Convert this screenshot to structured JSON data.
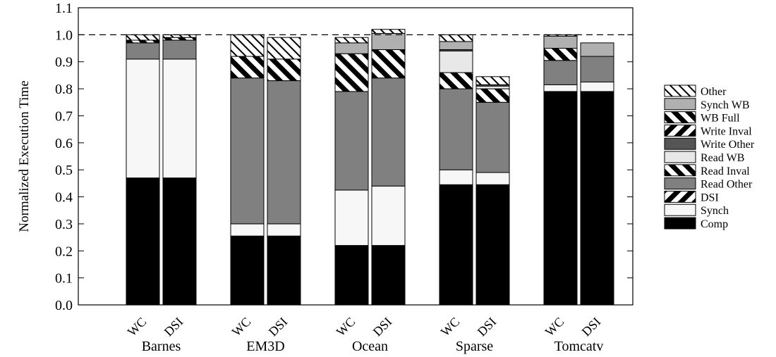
{
  "chart_data": {
    "type": "bar",
    "stacked": true,
    "title": "",
    "xlabel": "",
    "ylabel": "Normalized Execution Time",
    "ylim": [
      0.0,
      1.1
    ],
    "yticks": [
      "0.0",
      "0.1",
      "0.2",
      "0.3",
      "0.4",
      "0.5",
      "0.6",
      "0.7",
      "0.8",
      "0.9",
      "1.0",
      "1.1"
    ],
    "reference_line": {
      "y": 1.0,
      "style": "dashed"
    },
    "grid": false,
    "legend_position": "right",
    "groups": [
      {
        "name": "Barnes",
        "bars": [
          {
            "label": "WC",
            "values": [
              0.47,
              0.44,
              0.0,
              0.06,
              0.0,
              0.0,
              0.0,
              0.0,
              0.01,
              0.0,
              0.02
            ]
          },
          {
            "label": "DSI",
            "values": [
              0.47,
              0.44,
              0.0,
              0.07,
              0.0,
              0.0,
              0.0,
              0.0,
              0.01,
              0.0,
              0.01
            ]
          }
        ]
      },
      {
        "name": "EM3D",
        "bars": [
          {
            "label": "WC",
            "values": [
              0.255,
              0.045,
              0.0,
              0.54,
              0.0,
              0.0,
              0.0,
              0.0,
              0.08,
              0.0,
              0.08
            ]
          },
          {
            "label": "DSI",
            "values": [
              0.255,
              0.045,
              0.0,
              0.53,
              0.0,
              0.0,
              0.0,
              0.0,
              0.08,
              0.0,
              0.08
            ]
          }
        ]
      },
      {
        "name": "Ocean",
        "bars": [
          {
            "label": "WC",
            "values": [
              0.22,
              0.205,
              0.0,
              0.365,
              0.0,
              0.0,
              0.0,
              0.0,
              0.14,
              0.04,
              0.02
            ]
          },
          {
            "label": "DSI",
            "values": [
              0.22,
              0.22,
              0.0,
              0.4,
              0.0,
              0.0,
              0.0,
              0.0,
              0.105,
              0.06,
              0.015
            ]
          }
        ]
      },
      {
        "name": "Sparse",
        "bars": [
          {
            "label": "WC",
            "values": [
              0.445,
              0.055,
              0.0,
              0.3,
              0.06,
              0.08,
              0.005,
              0.0,
              0.0,
              0.03,
              0.025
            ]
          },
          {
            "label": "DSI",
            "values": [
              0.445,
              0.045,
              0.0,
              0.26,
              0.05,
              0.01,
              0.005,
              0.0,
              0.0,
              0.0,
              0.03
            ]
          }
        ]
      },
      {
        "name": "Tomcatv",
        "bars": [
          {
            "label": "WC",
            "values": [
              0.79,
              0.025,
              0.0,
              0.09,
              0.045,
              0.0,
              0.0,
              0.0,
              0.0,
              0.045,
              0.005
            ]
          },
          {
            "label": "DSI",
            "values": [
              0.79,
              0.035,
              0.0,
              0.095,
              0.0,
              0.0,
              0.0,
              0.0,
              0.0,
              0.05,
              0.0
            ]
          }
        ]
      }
    ],
    "series": [
      {
        "name": "Comp",
        "fill": "#000000",
        "pattern": "solid"
      },
      {
        "name": "Synch",
        "fill": "#f7f7f7",
        "pattern": "solid"
      },
      {
        "name": "DSI",
        "fill": "#ffffff",
        "pattern": "back-diagonal-stripes"
      },
      {
        "name": "Read Other",
        "fill": "#808080",
        "pattern": "solid"
      },
      {
        "name": "Read Inval",
        "fill": "#ffffff",
        "pattern": "diagonal-stripes"
      },
      {
        "name": "Read WB",
        "fill": "#e8e8e8",
        "pattern": "solid"
      },
      {
        "name": "Write Other",
        "fill": "#555555",
        "pattern": "solid"
      },
      {
        "name": "Write Inval",
        "fill": "#ffffff",
        "pattern": "back-diagonal-stripes"
      },
      {
        "name": "WB Full",
        "fill": "#ffffff",
        "pattern": "diagonal-stripes"
      },
      {
        "name": "Synch WB",
        "fill": "#b0b0b0",
        "pattern": "solid"
      },
      {
        "name": "Other",
        "fill": "#ffffff",
        "pattern": "thin-diagonal-stripes"
      }
    ],
    "legend_order": [
      "Other",
      "Synch WB",
      "WB Full",
      "Write Inval",
      "Write Other",
      "Read WB",
      "Read Inval",
      "Read Other",
      "DSI",
      "Synch",
      "Comp"
    ]
  }
}
